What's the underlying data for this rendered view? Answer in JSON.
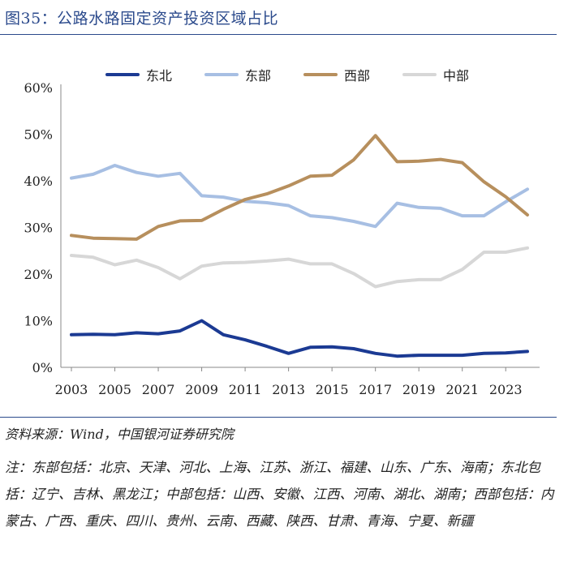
{
  "title": "图35：公路水路固定资产投资区域占比",
  "source": "资料来源：Wind，中国银河证券研究院",
  "note": "注：东部包括：北京、天津、河北、上海、江苏、浙江、福建、山东、广东、海南；东北包括：辽宁、吉林、黑龙江；中部包括：山西、安徽、江西、河南、湖北、湖南；西部包括：内蒙古、广西、重庆、四川、贵州、云南、西藏、陕西、甘肃、青海、宁夏、新疆",
  "chart_data": {
    "type": "line",
    "title": "",
    "xlabel": "",
    "ylabel": "",
    "x": [
      2003,
      2004,
      2005,
      2006,
      2007,
      2008,
      2009,
      2010,
      2011,
      2012,
      2013,
      2014,
      2015,
      2016,
      2017,
      2018,
      2019,
      2020,
      2021,
      2022,
      2023,
      2024
    ],
    "x_tick_labels": [
      "2003",
      "2005",
      "2007",
      "2009",
      "2011",
      "2013",
      "2015",
      "2017",
      "2019",
      "2021",
      "2023"
    ],
    "x_tick_values": [
      2003,
      2005,
      2007,
      2009,
      2011,
      2013,
      2015,
      2017,
      2019,
      2021,
      2023
    ],
    "y_tick_labels": [
      "0%",
      "10%",
      "20%",
      "30%",
      "40%",
      "50%",
      "60%"
    ],
    "y_tick_values": [
      0,
      10,
      20,
      30,
      40,
      50,
      60
    ],
    "ylim": [
      0,
      60
    ],
    "grid": false,
    "legend_position": "top",
    "series": [
      {
        "name": "东北",
        "color": "#1b3a93",
        "values": [
          7.0,
          7.1,
          7.0,
          7.4,
          7.2,
          7.8,
          10.0,
          7.0,
          5.9,
          4.5,
          3.0,
          4.3,
          4.4,
          4.0,
          3.0,
          2.4,
          2.6,
          2.6,
          2.6,
          3.0,
          3.1,
          3.4
        ]
      },
      {
        "name": "东部",
        "color": "#a7bfe3",
        "values": [
          40.6,
          41.4,
          43.3,
          41.8,
          41.0,
          41.6,
          36.8,
          36.5,
          35.6,
          35.3,
          34.7,
          32.5,
          32.1,
          31.3,
          30.2,
          35.2,
          34.3,
          34.1,
          32.5,
          32.5,
          35.5,
          38.2
        ]
      },
      {
        "name": "西部",
        "color": "#b78f5d",
        "values": [
          28.3,
          27.7,
          27.6,
          27.5,
          30.2,
          31.4,
          31.5,
          33.9,
          36.0,
          37.2,
          38.9,
          41.0,
          41.2,
          44.5,
          49.7,
          44.1,
          44.2,
          44.6,
          43.9,
          39.8,
          36.6,
          32.7
        ]
      },
      {
        "name": "中部",
        "color": "#d7d7d7",
        "values": [
          24.0,
          23.6,
          22.0,
          23.0,
          21.4,
          19.0,
          21.7,
          22.4,
          22.5,
          22.8,
          23.2,
          22.2,
          22.2,
          20.1,
          17.3,
          18.4,
          18.8,
          18.8,
          21.0,
          24.7,
          24.7,
          25.6
        ]
      }
    ]
  }
}
